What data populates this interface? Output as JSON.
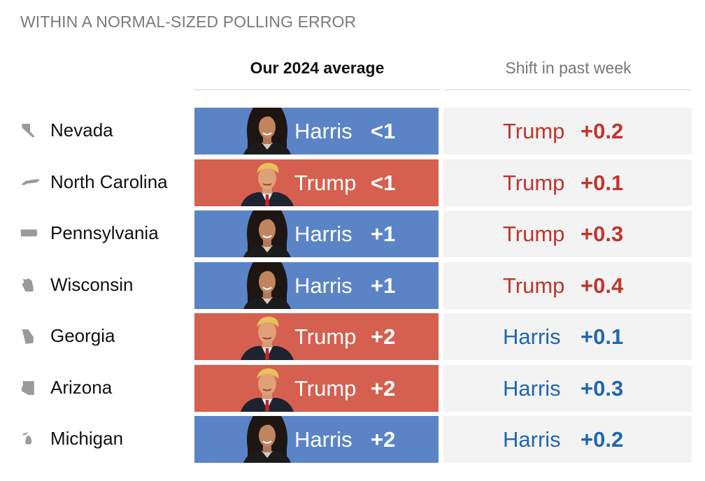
{
  "title": "WITHIN A NORMAL-SIZED POLLING ERROR",
  "columns": {
    "average": "Our 2024 average",
    "shift": "Shift in past week"
  },
  "colors": {
    "harris_fill": "#5b84c7",
    "trump_fill": "#d5604f",
    "harris_text": "#1f66b0",
    "trump_text": "#c1352d",
    "state_icon": "#9a9a9a"
  },
  "chart_data": {
    "type": "table",
    "columns": [
      "Our 2024 average",
      "Shift in past week"
    ],
    "rows": [
      {
        "state": "Nevada",
        "leader": "Harris",
        "margin": "<1",
        "shift_to": "Trump",
        "shift": "+0.2"
      },
      {
        "state": "North Carolina",
        "leader": "Trump",
        "margin": "<1",
        "shift_to": "Trump",
        "shift": "+0.1"
      },
      {
        "state": "Pennsylvania",
        "leader": "Harris",
        "margin": "+1",
        "shift_to": "Trump",
        "shift": "+0.3"
      },
      {
        "state": "Wisconsin",
        "leader": "Harris",
        "margin": "+1",
        "shift_to": "Trump",
        "shift": "+0.4"
      },
      {
        "state": "Georgia",
        "leader": "Trump",
        "margin": "+2",
        "shift_to": "Harris",
        "shift": "+0.1"
      },
      {
        "state": "Arizona",
        "leader": "Trump",
        "margin": "+2",
        "shift_to": "Harris",
        "shift": "+0.3"
      },
      {
        "state": "Michigan",
        "leader": "Harris",
        "margin": "+2",
        "shift_to": "Harris",
        "shift": "+0.2"
      }
    ]
  }
}
